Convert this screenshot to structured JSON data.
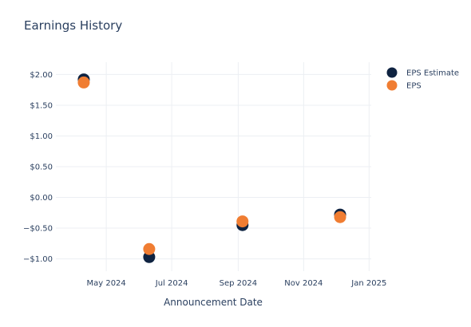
{
  "chart_data": {
    "type": "scatter",
    "title": "Earnings History",
    "xlabel": "Announcement Date",
    "ylabel": "",
    "x_axis": {
      "type": "date",
      "range": [
        "2024-03-15",
        "2025-01-03"
      ],
      "ticks": [
        {
          "date": "2024-05-01",
          "label": "May 2024"
        },
        {
          "date": "2024-07-01",
          "label": "Jul 2024"
        },
        {
          "date": "2024-09-01",
          "label": "Sep 2024"
        },
        {
          "date": "2024-11-01",
          "label": "Nov 2024"
        },
        {
          "date": "2025-01-01",
          "label": "Jan 2025"
        }
      ]
    },
    "y_axis": {
      "range": [
        -1.2,
        2.2
      ],
      "ticks": [
        {
          "value": 2.0,
          "label": "$2.00"
        },
        {
          "value": 1.5,
          "label": "$1.50"
        },
        {
          "value": 1.0,
          "label": "$1.00"
        },
        {
          "value": 0.5,
          "label": "$0.50"
        },
        {
          "value": 0.0,
          "label": "$0.00"
        },
        {
          "value": -0.5,
          "label": "−$0.50"
        },
        {
          "value": -1.0,
          "label": "−$1.00"
        }
      ]
    },
    "grid": true,
    "legend_position": "top-right",
    "series": [
      {
        "name": "EPS Estimate",
        "color": "#0f2341",
        "points": [
          {
            "x": "2024-04-10",
            "y": 1.92
          },
          {
            "x": "2024-06-10",
            "y": -0.97
          },
          {
            "x": "2024-09-05",
            "y": -0.45
          },
          {
            "x": "2024-12-05",
            "y": -0.28
          }
        ]
      },
      {
        "name": "EPS",
        "color": "#f07d32",
        "points": [
          {
            "x": "2024-04-10",
            "y": 1.87
          },
          {
            "x": "2024-06-10",
            "y": -0.84
          },
          {
            "x": "2024-09-05",
            "y": -0.39
          },
          {
            "x": "2024-12-05",
            "y": -0.32
          }
        ]
      }
    ]
  }
}
